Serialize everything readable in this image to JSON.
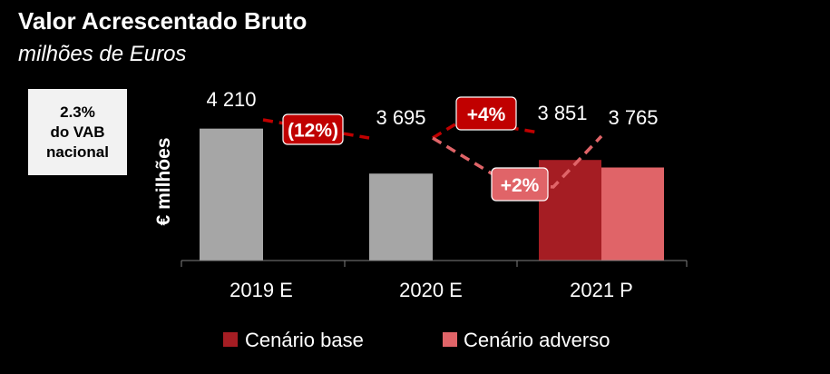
{
  "header": {
    "title": "Valor Acrescentado Bruto",
    "subtitle": "milhões de Euros"
  },
  "note": {
    "line1": "2.3%",
    "line2": "do VAB",
    "line3": "nacional"
  },
  "colors": {
    "historic": "#a6a6a6",
    "base": "#a51d23",
    "adverse": "#e06468",
    "badge_dark": "#c00000",
    "badge_light": "#e06468"
  },
  "chart_data": {
    "type": "bar",
    "ylabel": "€ milhões",
    "categories": [
      "2019 E",
      "2020 E",
      "2021 P"
    ],
    "series": [
      {
        "name": "",
        "values": [
          4210,
          3695,
          null
        ]
      },
      {
        "name": "Cenário base",
        "values": [
          null,
          null,
          3851
        ]
      },
      {
        "name": "Cenário adverso",
        "values": [
          null,
          null,
          3765
        ]
      }
    ],
    "value_labels": [
      "4 210",
      "3 695",
      "3 851",
      "3 765"
    ],
    "ylim": [
      2700,
      4300
    ],
    "annotations": [
      {
        "text": "(12%)",
        "from": "2019 E",
        "to": "2020 E"
      },
      {
        "text": "+4%",
        "scenario": "Cenário base"
      },
      {
        "text": "+2%",
        "scenario": "Cenário adverso"
      }
    ],
    "legend": [
      "Cenário base",
      "Cenário adverso"
    ],
    "legend_position": "bottom"
  }
}
